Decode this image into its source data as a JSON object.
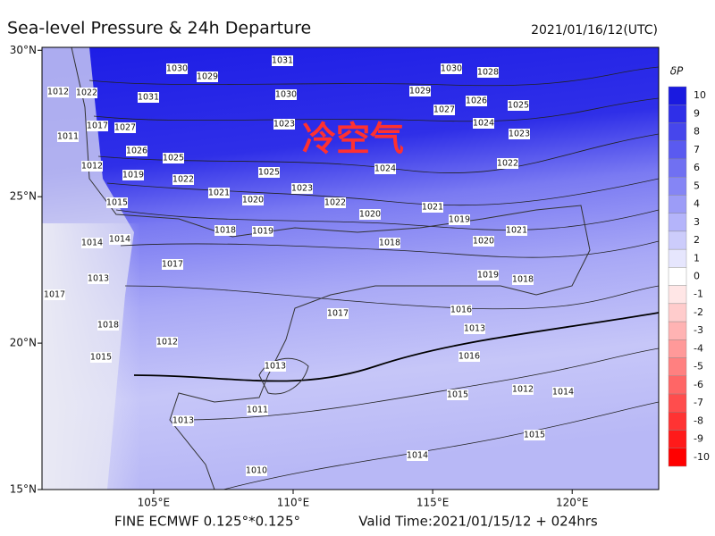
{
  "header": {
    "title": "Sea-level Pressure & 24h Departure",
    "date": "2021/01/16/12(UTC)"
  },
  "map": {
    "xlim": [
      101,
      123.1
    ],
    "ylim": [
      15,
      30.1
    ],
    "xticks": [
      {
        "value": 105,
        "label": "105°E"
      },
      {
        "value": 110,
        "label": "110°E"
      },
      {
        "value": 115,
        "label": "115°E"
      },
      {
        "value": 120,
        "label": "120°E"
      }
    ],
    "yticks": [
      {
        "value": 15,
        "label": "15°N"
      },
      {
        "value": 20,
        "label": "20°N"
      },
      {
        "value": 25,
        "label": "25°N"
      },
      {
        "value": 30,
        "label": "30°N"
      }
    ],
    "annotation": "冷空气",
    "isobar_labels": [
      1031,
      1030,
      1029,
      1030,
      1028,
      1012,
      1022,
      1031,
      1030,
      1029,
      1027,
      1026,
      1025,
      1017,
      1027,
      1023,
      1024,
      1023,
      1011,
      1026,
      1025,
      1012,
      1019,
      1022,
      1025,
      1024,
      1022,
      1023,
      1021,
      1020,
      1022,
      1021,
      1015,
      1020,
      1019,
      1018,
      1019,
      1014,
      1014,
      1018,
      1020,
      1021,
      1017,
      1019,
      1018,
      1013,
      1017,
      1017,
      1016,
      1013,
      1018,
      1012,
      1015,
      1016,
      1013,
      1012,
      1014,
      1015,
      1011,
      1015,
      1013,
      1014,
      1010
    ]
  },
  "colorbar": {
    "title": "δP",
    "levels": [
      10,
      9,
      8,
      7,
      6,
      5,
      4,
      3,
      2,
      1,
      0,
      -1,
      -2,
      -3,
      -4,
      -5,
      -6,
      -7,
      -8,
      -9,
      -10
    ],
    "colors": [
      "#1a1ae0",
      "#2f2fe8",
      "#4646ec",
      "#5a5af0",
      "#7070f2",
      "#8585f5",
      "#9c9cf7",
      "#b4b4fa",
      "#ccccfb",
      "#e6e6fd",
      "#ffffff",
      "#ffe6e6",
      "#ffcccc",
      "#ffb3b3",
      "#ff9999",
      "#ff8080",
      "#ff6666",
      "#ff4d4d",
      "#ff3333",
      "#ff1a1a",
      "#ff0000"
    ]
  },
  "footer": {
    "model": "FINE ECMWF 0.125°*0.125°",
    "valid_time": "Valid Time:2021/01/15/12 + 024hrs"
  }
}
